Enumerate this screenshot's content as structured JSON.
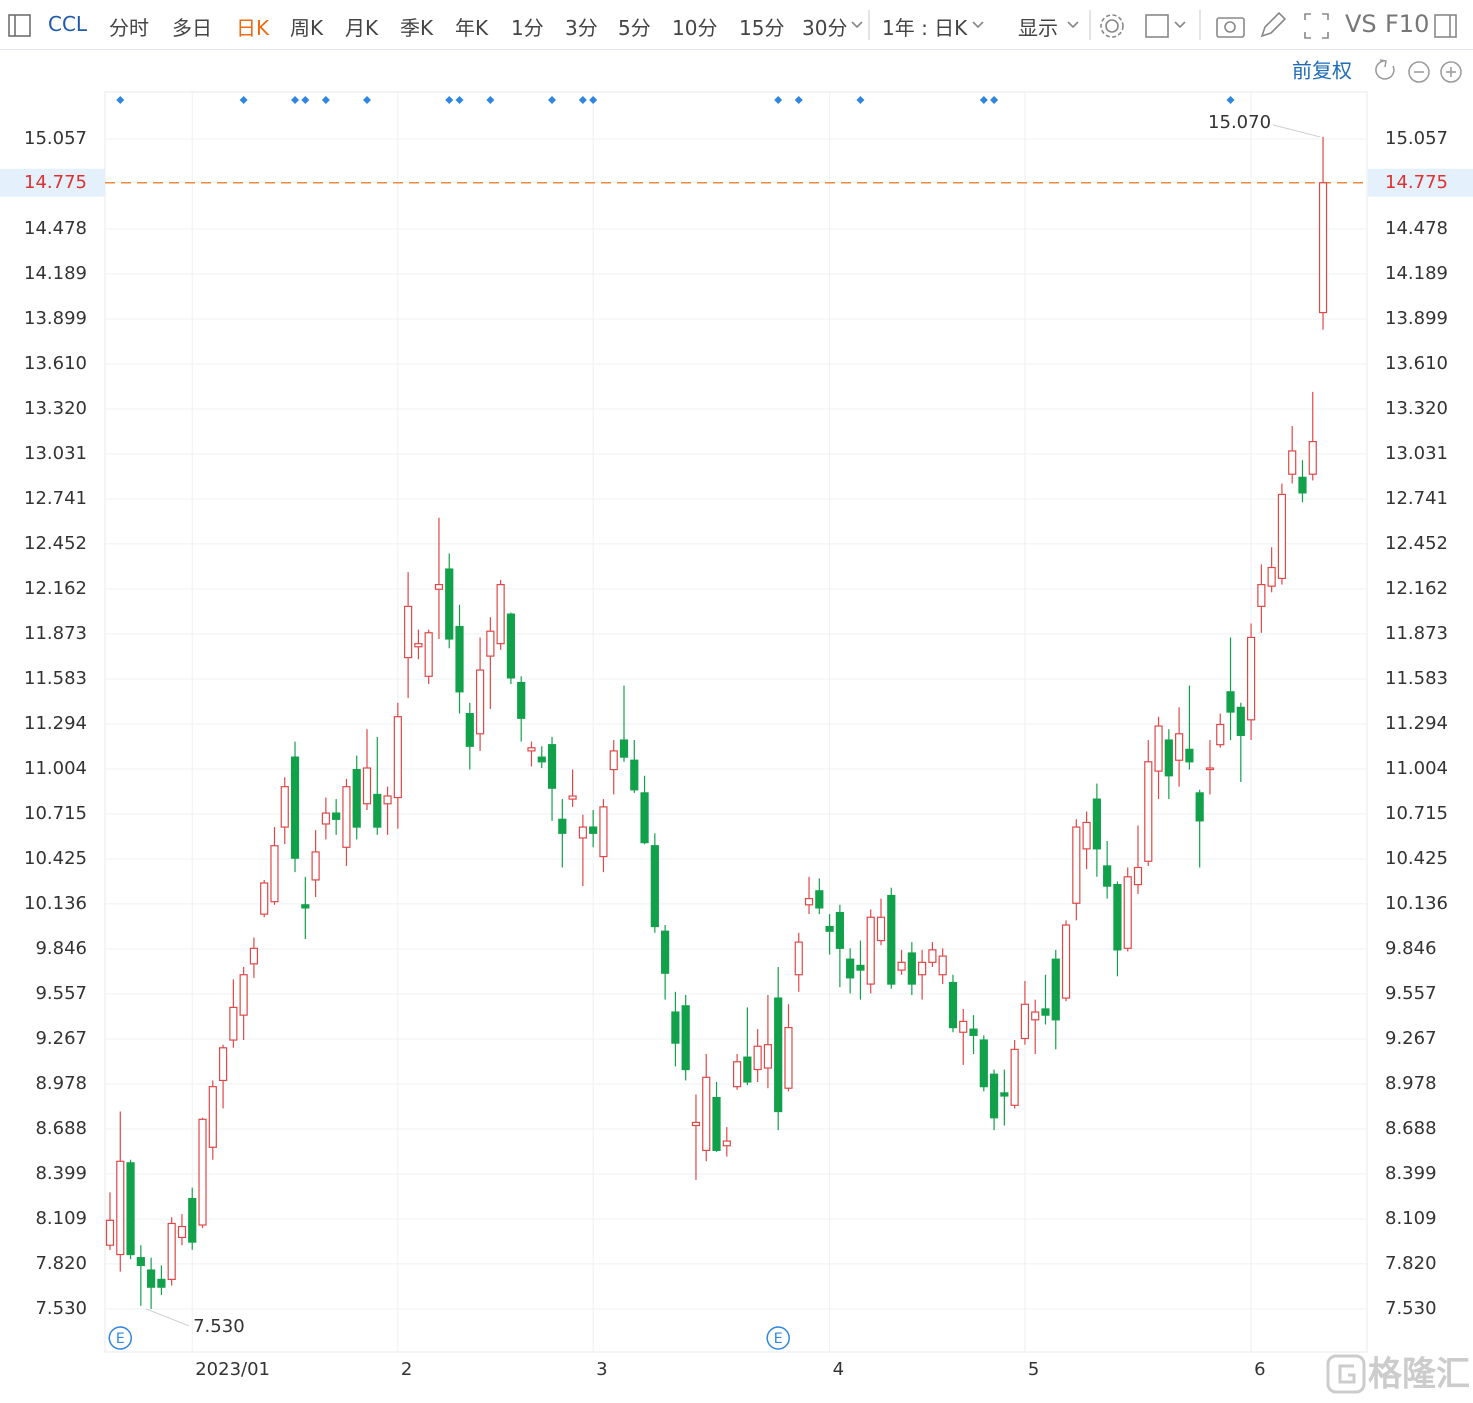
{
  "toolbar": {
    "symbol": "CCL",
    "periods": [
      "分时",
      "多日",
      "日K",
      "周K",
      "月K",
      "季K",
      "年K",
      "1分",
      "3分",
      "5分",
      "10分",
      "15分",
      "30分"
    ],
    "active_period": 2,
    "range": "1年 : 日K",
    "display": "显示",
    "vs": "VS",
    "f10": "F10"
  },
  "adjust": "前复权",
  "watermark": "格隆汇",
  "chart_data": {
    "type": "candlestick",
    "categories": [
      null,
      null,
      null,
      null,
      null,
      null,
      null,
      null,
      "2023/01",
      null,
      null,
      null,
      null,
      null,
      null,
      null,
      null,
      null,
      null,
      null,
      null,
      null,
      null,
      null,
      null,
      null,
      null,
      null,
      "2",
      null,
      null,
      null,
      null,
      null,
      null,
      null,
      null,
      null,
      null,
      null,
      null,
      null,
      null,
      null,
      null,
      null,
      null,
      "3",
      null,
      null,
      null,
      null,
      null,
      null,
      null,
      null,
      null,
      null,
      null,
      null,
      null,
      null,
      null,
      null,
      null,
      null,
      null,
      null,
      null,
      null,
      "4",
      null,
      null,
      null,
      null,
      null,
      null,
      null,
      null,
      null,
      null,
      null,
      null,
      null,
      null,
      null,
      null,
      null,
      null,
      "5",
      null,
      null,
      null,
      null,
      null,
      null,
      null,
      null,
      null,
      null,
      null,
      null,
      null,
      null,
      null,
      null,
      null,
      null,
      null,
      null,
      null,
      "6",
      null,
      null,
      null,
      null,
      null,
      null,
      null
    ],
    "open": [
      7.94,
      7.88,
      8.47,
      7.86,
      7.78,
      7.72,
      7.72,
      7.99,
      8.24,
      8.07,
      8.57,
      9.0,
      9.26,
      9.42,
      9.75,
      10.07,
      10.15,
      10.63,
      11.08,
      10.13,
      10.29,
      10.65,
      10.72,
      10.5,
      11.0,
      10.78,
      10.84,
      10.78,
      10.82,
      11.72,
      11.79,
      11.6,
      12.16,
      12.29,
      11.92,
      11.36,
      11.23,
      11.73,
      11.81,
      12.0,
      11.56,
      11.12,
      11.08,
      11.16,
      10.68,
      10.81,
      10.56,
      10.63,
      10.44,
      11.0,
      11.19,
      11.06,
      10.85,
      10.51,
      9.96,
      9.44,
      9.48,
      8.71,
      8.55,
      8.89,
      8.58,
      8.96,
      9.15,
      9.07,
      9.08,
      9.53,
      8.95,
      9.68,
      10.13,
      10.22,
      9.99,
      10.08,
      9.78,
      9.74,
      9.62,
      9.9,
      10.19,
      9.71,
      9.82,
      9.68,
      9.76,
      9.68,
      9.63,
      9.31,
      9.33,
      9.26,
      9.04,
      8.92,
      8.84,
      9.27,
      9.39,
      9.46,
      9.78,
      9.53,
      10.14,
      10.49,
      10.81,
      10.38,
      10.26,
      9.85,
      10.26,
      10.41,
      10.99,
      11.19,
      11.06,
      11.13,
      10.85,
      11.0,
      11.16,
      11.5,
      11.4,
      11.32,
      12.05,
      12.18,
      12.23,
      12.9,
      12.88,
      12.9,
      13.94
    ],
    "high": [
      8.28,
      8.8,
      8.49,
      7.94,
      7.86,
      7.81,
      8.12,
      8.14,
      8.31,
      8.76,
      9.0,
      9.23,
      9.65,
      9.73,
      9.92,
      10.29,
      10.63,
      10.95,
      11.18,
      10.31,
      10.61,
      10.82,
      10.81,
      10.94,
      11.09,
      11.26,
      11.21,
      10.89,
      11.43,
      12.27,
      11.9,
      11.9,
      12.62,
      12.39,
      12.06,
      11.43,
      11.85,
      11.98,
      12.22,
      12.01,
      11.6,
      11.18,
      11.15,
      11.21,
      10.81,
      11.0,
      10.71,
      10.74,
      10.81,
      11.19,
      11.54,
      11.19,
      10.96,
      10.59,
      10.0,
      9.57,
      9.55,
      8.91,
      9.17,
      8.99,
      8.7,
      9.17,
      9.47,
      9.33,
      9.55,
      9.73,
      9.49,
      9.95,
      10.31,
      10.3,
      10.07,
      10.13,
      9.85,
      9.9,
      10.1,
      10.17,
      10.24,
      9.84,
      9.89,
      9.84,
      9.89,
      9.85,
      9.68,
      9.46,
      9.42,
      9.29,
      9.07,
      9.07,
      9.26,
      9.64,
      9.52,
      9.68,
      9.84,
      10.03,
      10.68,
      10.73,
      10.91,
      10.54,
      10.28,
      10.37,
      10.64,
      11.19,
      11.34,
      11.26,
      11.4,
      11.54,
      10.87,
      11.19,
      11.36,
      11.85,
      11.43,
      11.94,
      12.32,
      12.43,
      12.84,
      13.21,
      12.99,
      13.43,
      15.07
    ],
    "low": [
      7.91,
      7.77,
      7.85,
      7.55,
      7.53,
      7.62,
      7.68,
      7.94,
      7.91,
      8.05,
      8.49,
      8.82,
      9.21,
      9.26,
      9.66,
      10.05,
      10.13,
      10.52,
      10.34,
      9.91,
      10.18,
      10.55,
      10.58,
      10.38,
      10.55,
      10.74,
      10.58,
      10.58,
      10.62,
      11.46,
      11.71,
      11.55,
      11.84,
      11.78,
      11.36,
      11.0,
      11.12,
      11.39,
      11.77,
      11.55,
      11.18,
      11.02,
      11.01,
      10.67,
      10.37,
      10.76,
      10.25,
      10.5,
      10.34,
      10.84,
      11.05,
      10.85,
      10.52,
      9.95,
      9.52,
      9.09,
      9.0,
      8.36,
      8.48,
      8.54,
      8.51,
      8.94,
      8.97,
      8.99,
      8.95,
      8.68,
      8.93,
      9.57,
      10.07,
      10.07,
      9.81,
      9.6,
      9.56,
      9.52,
      9.56,
      9.87,
      9.59,
      9.68,
      9.55,
      9.52,
      9.73,
      9.62,
      9.31,
      9.1,
      9.17,
      8.93,
      8.68,
      8.71,
      8.82,
      9.23,
      9.17,
      9.36,
      9.2,
      9.51,
      10.03,
      10.36,
      10.31,
      10.17,
      9.67,
      9.83,
      10.2,
      10.38,
      10.81,
      10.81,
      10.89,
      11.0,
      10.37,
      10.84,
      11.14,
      11.19,
      10.92,
      11.19,
      11.88,
      12.14,
      12.19,
      12.84,
      12.72,
      12.86,
      13.83
    ],
    "close": [
      8.1,
      8.48,
      7.88,
      7.81,
      7.67,
      7.67,
      8.08,
      8.06,
      7.96,
      8.75,
      8.96,
      9.21,
      9.47,
      9.68,
      9.85,
      10.27,
      10.51,
      10.89,
      10.43,
      10.11,
      10.47,
      10.72,
      10.68,
      10.89,
      10.63,
      11.01,
      10.63,
      10.83,
      11.34,
      12.05,
      11.81,
      11.88,
      12.19,
      11.84,
      11.5,
      11.15,
      11.64,
      11.89,
      12.19,
      11.59,
      11.33,
      11.14,
      11.05,
      10.88,
      10.59,
      10.83,
      10.63,
      10.59,
      10.76,
      11.12,
      11.08,
      10.87,
      10.53,
      9.99,
      9.69,
      9.24,
      9.07,
      8.73,
      9.02,
      8.55,
      8.61,
      9.12,
      8.99,
      9.22,
      9.23,
      8.8,
      9.34,
      9.89,
      10.17,
      10.11,
      9.96,
      9.85,
      9.66,
      9.71,
      10.05,
      10.05,
      9.62,
      9.76,
      9.62,
      9.76,
      9.84,
      9.8,
      9.34,
      9.38,
      9.29,
      8.96,
      8.76,
      8.9,
      9.2,
      9.49,
      9.44,
      9.42,
      9.39,
      10.0,
      10.63,
      10.66,
      10.49,
      10.25,
      9.84,
      10.31,
      10.37,
      11.05,
      11.28,
      10.96,
      11.23,
      11.05,
      10.67,
      11.01,
      11.29,
      11.37,
      11.22,
      11.85,
      12.19,
      12.3,
      12.77,
      13.05,
      12.78,
      13.11,
      14.775
    ],
    "up_color": "#e04848",
    "down_color": "#12a14b",
    "ylim": [
      7.253,
      15.359
    ],
    "yticks": [
      {
        "value": 7.53,
        "label": "7.530"
      },
      {
        "value": 7.82,
        "label": "7.820"
      },
      8.109,
      8.399,
      8.688,
      8.978,
      9.267,
      9.557,
      9.846,
      10.136,
      10.425,
      10.715,
      11.004,
      11.294,
      11.583,
      11.873,
      12.162,
      12.452,
      12.741,
      13.031,
      {
        "value": 13.32,
        "label": "13.320"
      },
      {
        "value": 13.61,
        "label": "13.610"
      },
      13.899,
      14.189,
      14.478,
      15.057
    ],
    "last_price": 14.775,
    "last_price_color": "#f08a3c",
    "high_label": {
      "value": 15.07,
      "label": "15.070"
    },
    "low_label": {
      "value": 7.53,
      "label": "7.530"
    },
    "markers": [
      1,
      13,
      18,
      19,
      21,
      25,
      33,
      34,
      37,
      43,
      46,
      47,
      65,
      67,
      73,
      85,
      86,
      109
    ],
    "marker_color": "#2f86e0",
    "earnings": [
      1,
      65
    ],
    "earnings_label": "E",
    "grid": true
  }
}
